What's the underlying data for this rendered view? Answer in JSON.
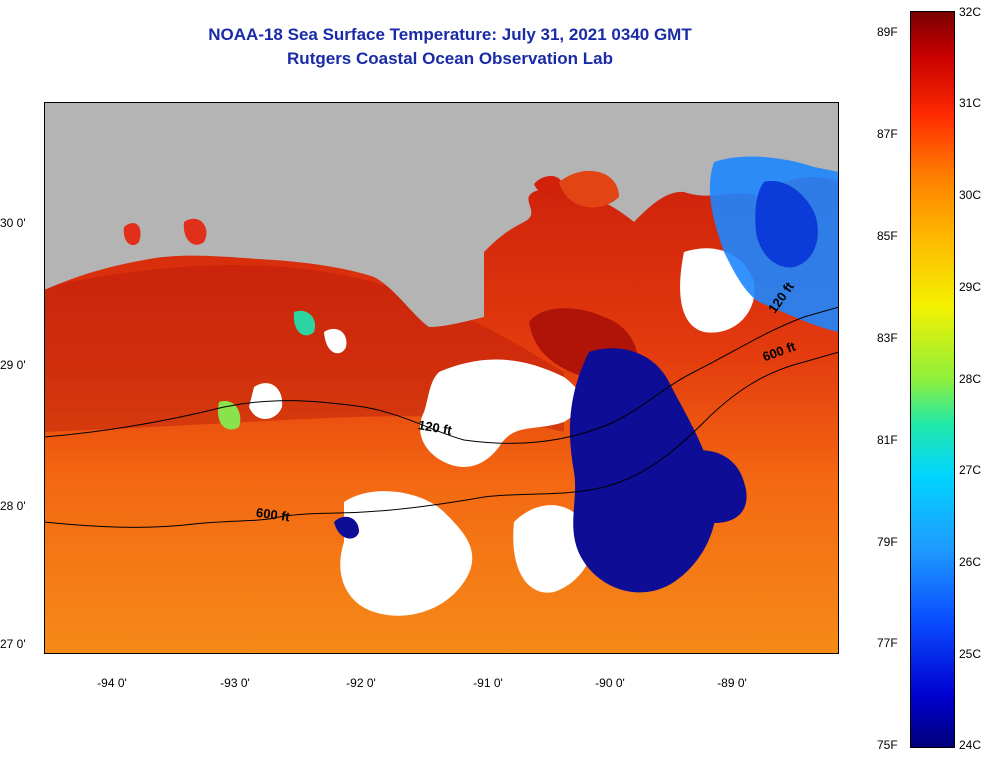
{
  "title": {
    "line1": "NOAA-18 Sea Surface Temperature:  July 31, 2021 0340 GMT",
    "line2": "Rutgers Coastal Ocean Observation Lab"
  },
  "map": {
    "lat_labels": [
      "30 0'",
      "29 0'",
      "28 0'",
      "27 0'"
    ],
    "lon_labels": [
      "-94 0'",
      "-93 0'",
      "-92 0'",
      "-91 0'",
      "-90 0'",
      "-89 0'"
    ],
    "contour_labels": [
      "120 ft",
      "600 ft",
      "600 ft",
      "120 ft"
    ]
  },
  "colorbar": {
    "fahrenheit": [
      "89F",
      "87F",
      "85F",
      "83F",
      "81F",
      "79F",
      "77F",
      "75F"
    ],
    "celsius": [
      "32C",
      "31C",
      "30C",
      "29C",
      "28C",
      "27C",
      "26C",
      "25C",
      "24C"
    ]
  },
  "colors": {
    "land": "#b4b4b4",
    "cloud": "#ffffff",
    "warm_shelf": "#d9260c",
    "offshore": "#f27a10",
    "cold": "#0d0d95",
    "title": "#1a2ba8"
  }
}
